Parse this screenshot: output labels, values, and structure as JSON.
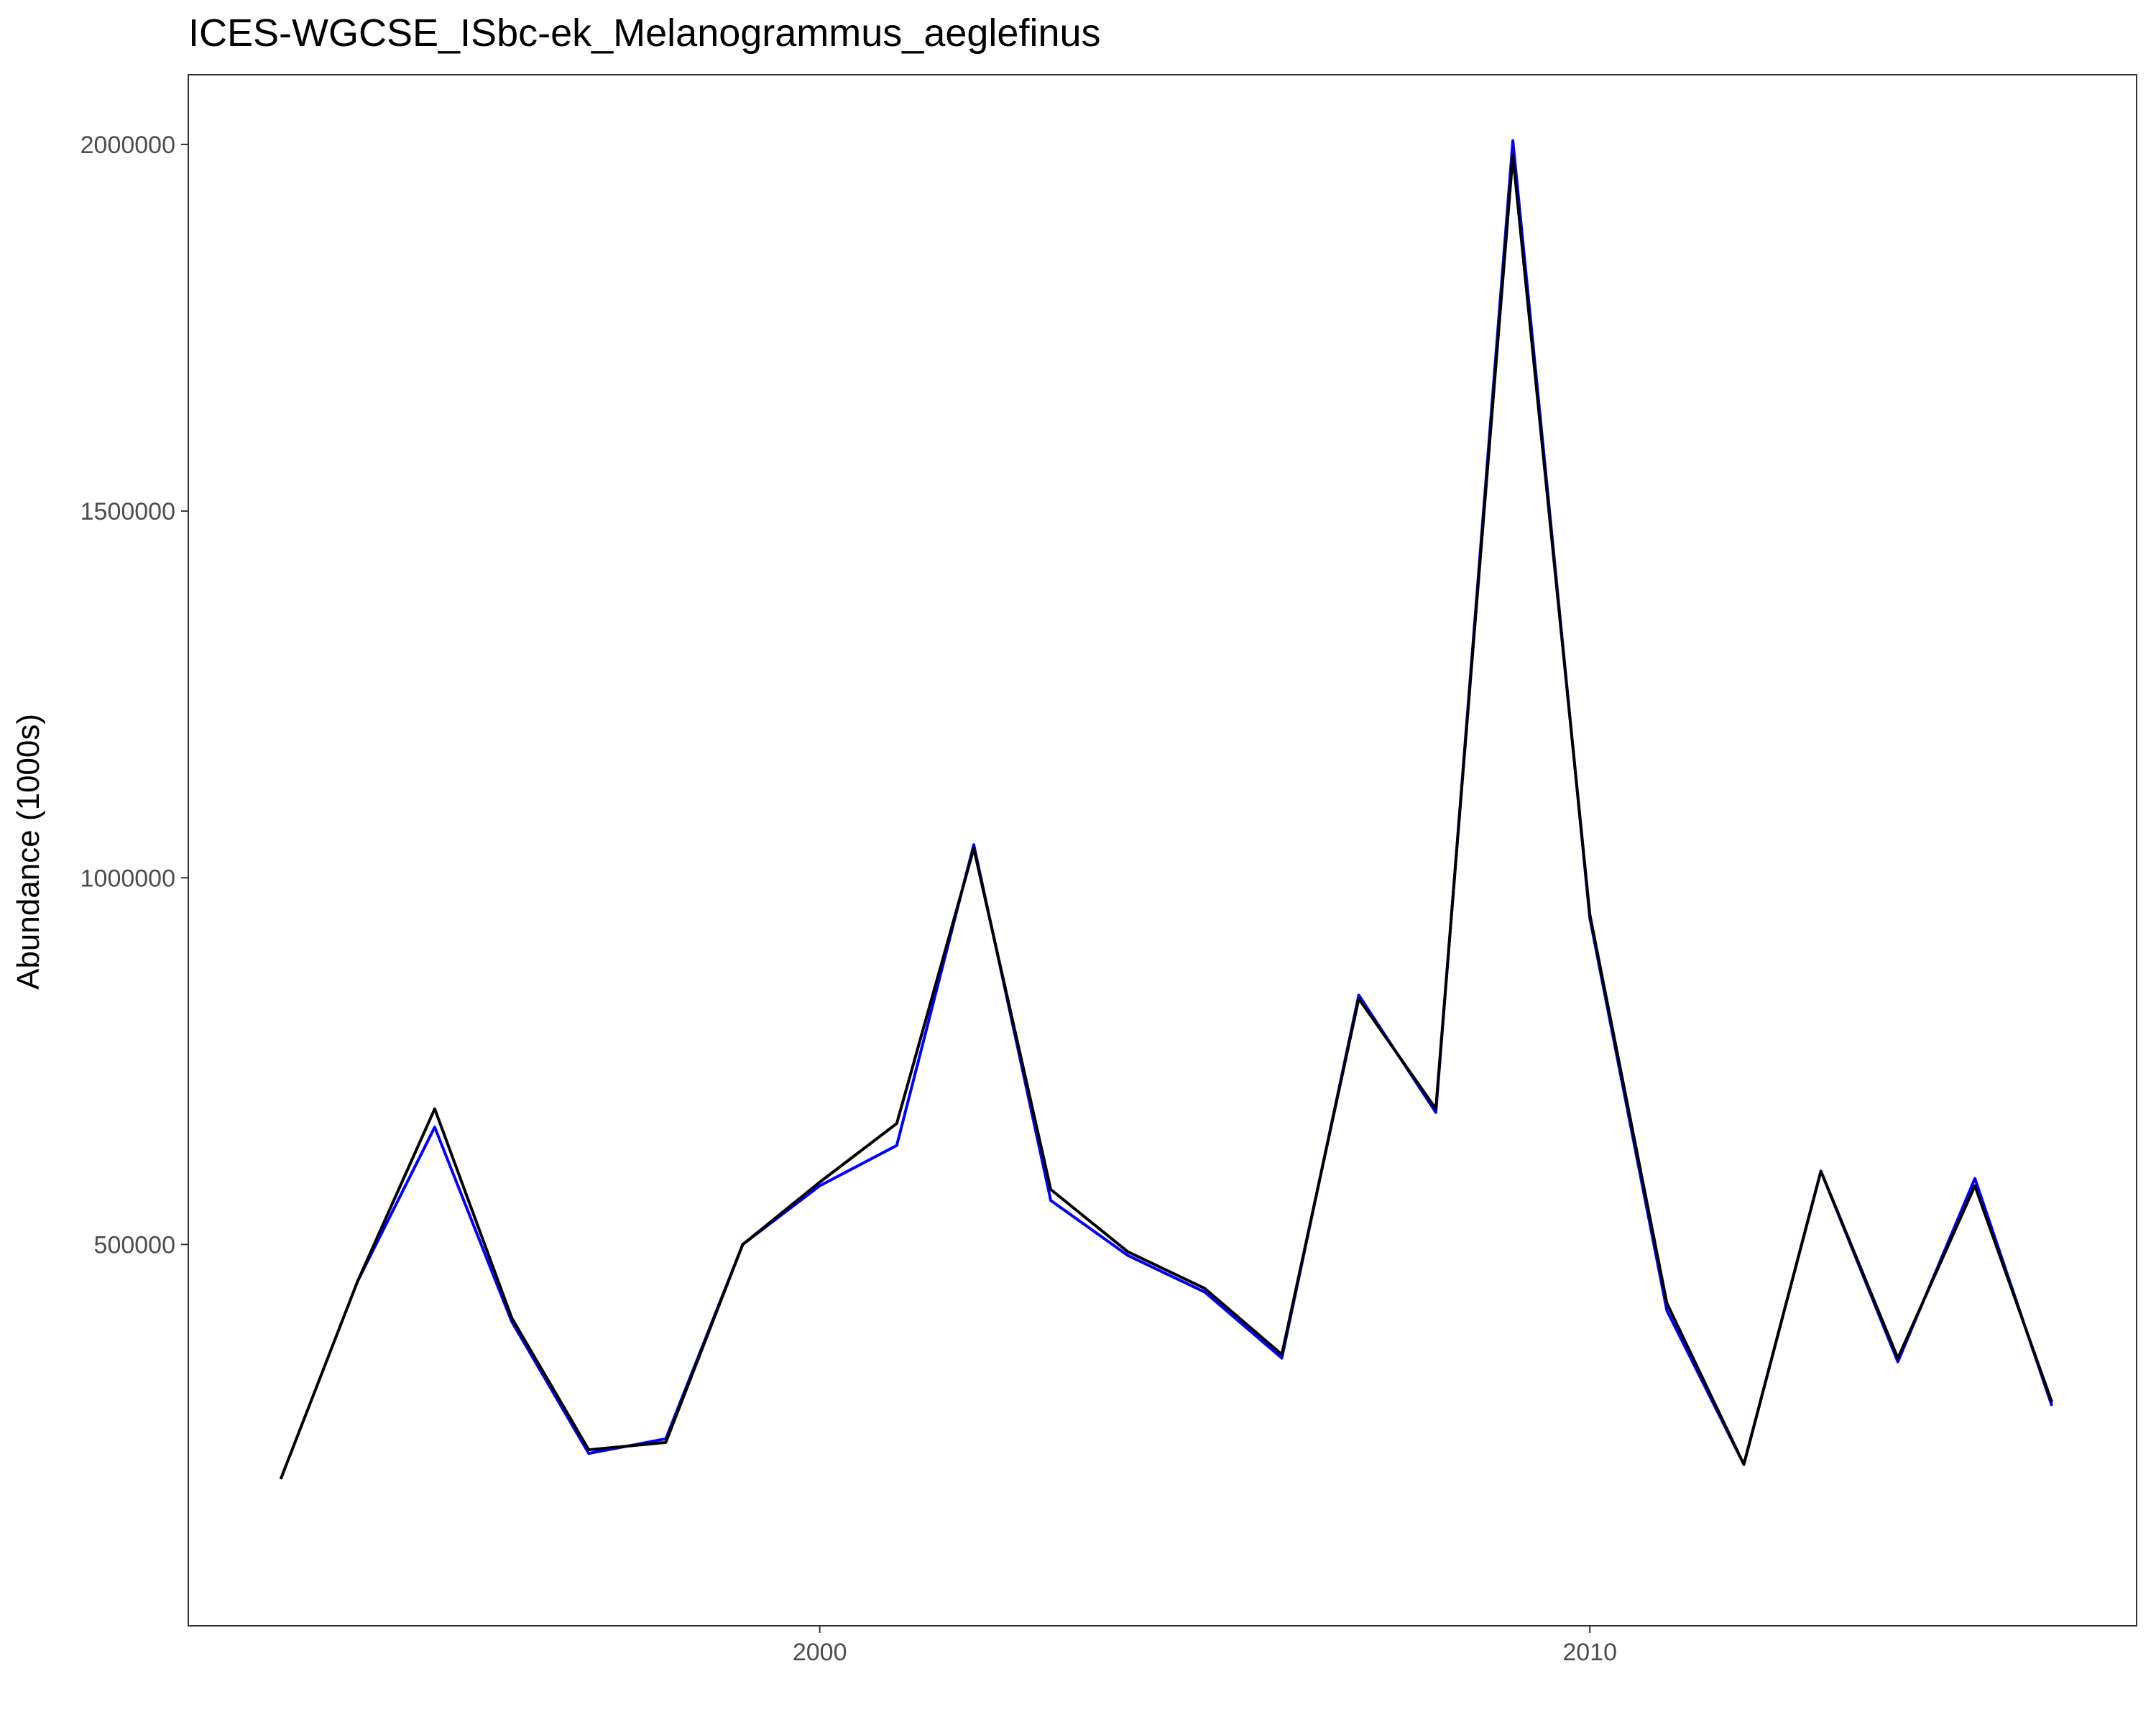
{
  "chart_data": {
    "type": "line",
    "title": "ICES-WGCSE_ISbc-ek_Melanogrammus_aeglefinus",
    "xlabel": "",
    "ylabel": "Abundance (1000s)",
    "x": [
      1993,
      1994,
      1995,
      1996,
      1997,
      1998,
      1999,
      2000,
      2001,
      2002,
      2003,
      2004,
      2005,
      2006,
      2007,
      2008,
      2009,
      2010,
      2011,
      2012,
      2013,
      2014,
      2015,
      2016
    ],
    "xlim": [
      1991.8,
      2017.1
    ],
    "ylim": [
      -20000,
      2095000
    ],
    "x_ticks": [
      2000,
      2010
    ],
    "x_tick_labels": [
      "2000",
      "2010"
    ],
    "y_ticks": [
      500000,
      1000000,
      1500000,
      2000000
    ],
    "y_tick_labels": [
      "500000",
      "1000000",
      "1500000",
      "2000000"
    ],
    "grid": false,
    "legend": "none",
    "series": [
      {
        "color": "#0000ff",
        "values": [
          null,
          450000,
          660000,
          395000,
          215000,
          235000,
          500000,
          580000,
          635000,
          1045000,
          560000,
          485000,
          435000,
          345000,
          840000,
          680000,
          2005000,
          945000,
          410000,
          200000,
          600000,
          340000,
          590000,
          280000
        ]
      },
      {
        "color": "#000000",
        "values": [
          180000,
          450000,
          685000,
          400000,
          220000,
          230000,
          500000,
          585000,
          665000,
          1040000,
          575000,
          490000,
          440000,
          350000,
          835000,
          685000,
          1985000,
          950000,
          420000,
          200000,
          600000,
          345000,
          580000,
          285000
        ]
      }
    ]
  }
}
